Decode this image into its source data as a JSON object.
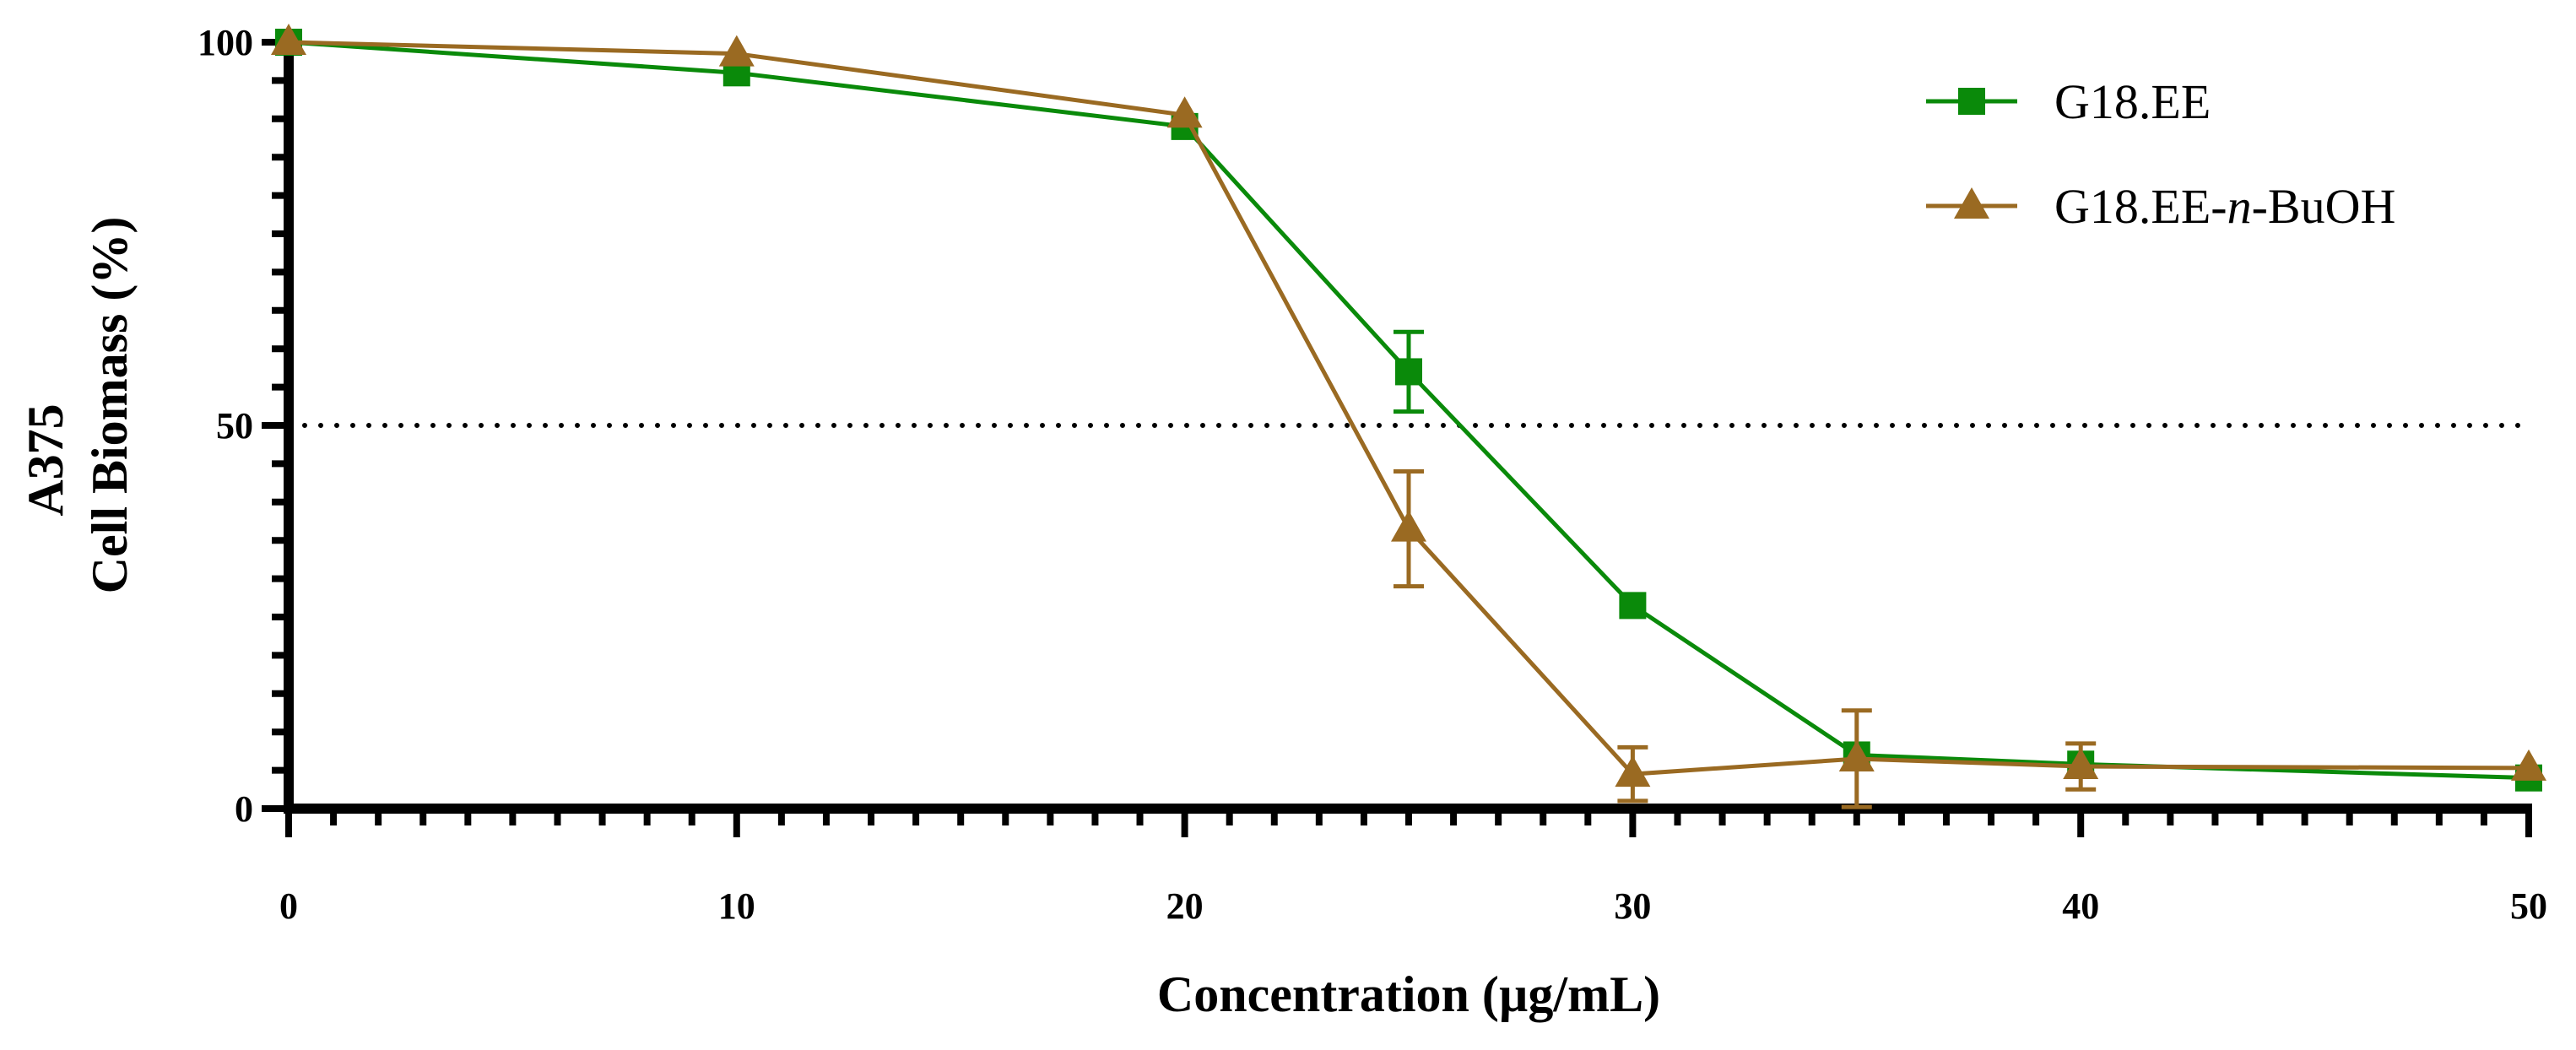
{
  "chart_data": {
    "type": "line",
    "title": "",
    "xlabel": "Concentration (µg/mL)",
    "ylabel_line1": "A375",
    "ylabel_line2": "Cell Biomass (%)",
    "xlim": [
      0,
      50
    ],
    "ylim": [
      0,
      100
    ],
    "x_ticks": [
      0,
      10,
      20,
      30,
      40,
      50
    ],
    "y_ticks": [
      0,
      50,
      100
    ],
    "x_minor_step": 1,
    "y_minor_step": 5,
    "reference_line": {
      "y": 50,
      "style": "dotted"
    },
    "legend_position": "top-right",
    "series": [
      {
        "name": "G18.EE",
        "name_parts": [
          "G18.EE"
        ],
        "color": "#0a8a0a",
        "marker": "square",
        "x": [
          0,
          10,
          20,
          25,
          30,
          35,
          40,
          50
        ],
        "y": [
          100,
          96,
          89,
          57,
          26.5,
          7,
          5.8,
          4
        ],
        "err": [
          0,
          0,
          0,
          5.2,
          0,
          0,
          0,
          0
        ]
      },
      {
        "name": "G18.EE-n-BuOH",
        "name_parts": [
          "G18.EE-",
          "n",
          "-BuOH"
        ],
        "color": "#9a6a22",
        "marker": "triangle",
        "x": [
          0,
          10,
          20,
          25,
          30,
          35,
          40,
          50
        ],
        "y": [
          100,
          98.5,
          90.5,
          36.5,
          4.5,
          6.5,
          5.5,
          5.3
        ],
        "err": [
          0,
          0,
          0,
          7.5,
          3.5,
          6.3,
          3,
          0
        ]
      }
    ]
  }
}
